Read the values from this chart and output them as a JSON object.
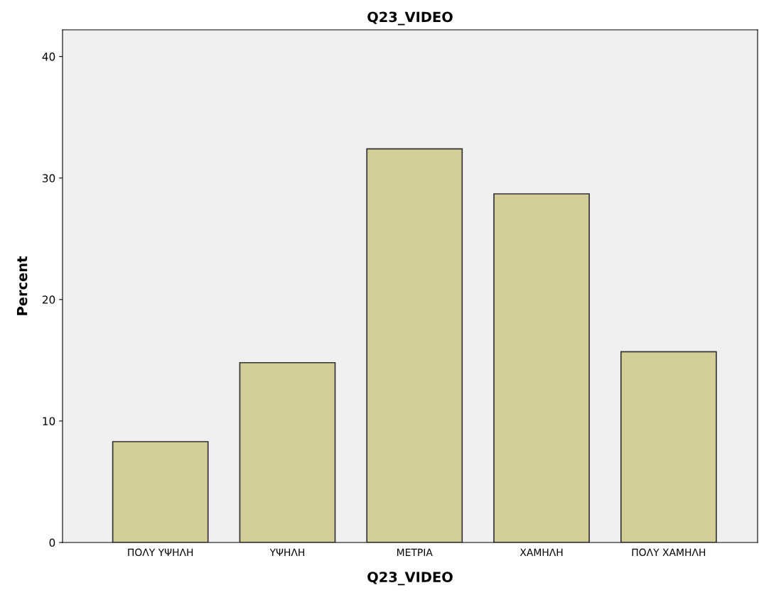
{
  "chart_data": {
    "type": "bar",
    "title": "Q23_VIDEO",
    "xlabel": "Q23_VIDEO",
    "ylabel": "Percent",
    "categories": [
      "ΠΟΛΥ ΥΨΗΛΗ",
      "ΥΨΗΛΗ",
      "ΜΕΤΡΙΑ",
      "ΧΑΜΗΛΗ",
      "ΠΟΛΥ ΧΑΜΗΛΗ"
    ],
    "values": [
      8.3,
      14.8,
      32.4,
      28.7,
      15.7
    ],
    "color": "#d3ce97",
    "ylim": [
      0,
      42.2
    ],
    "yticks": [
      0,
      10,
      20,
      30,
      40
    ],
    "grid": false
  }
}
